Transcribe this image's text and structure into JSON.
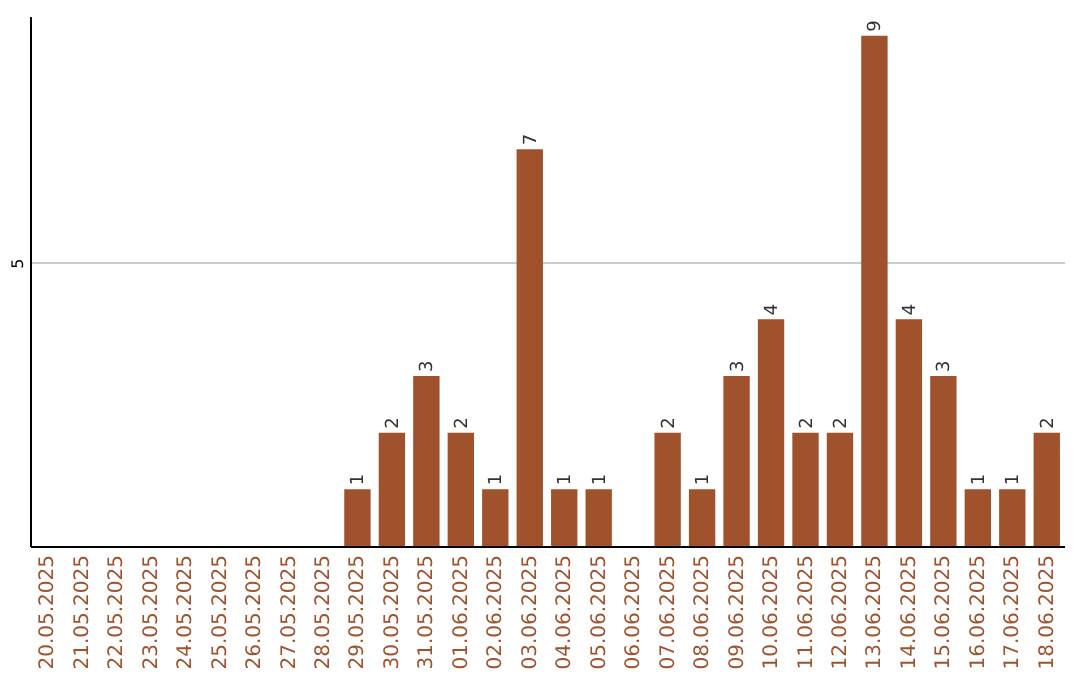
{
  "chart_data": {
    "type": "bar",
    "categories": [
      "20.05.2025",
      "21.05.2025",
      "22.05.2025",
      "23.05.2025",
      "24.05.2025",
      "25.05.2025",
      "26.05.2025",
      "27.05.2025",
      "28.05.2025",
      "29.05.2025",
      "30.05.2025",
      "31.05.2025",
      "01.06.2025",
      "02.06.2025",
      "03.06.2025",
      "04.06.2025",
      "05.06.2025",
      "06.06.2025",
      "07.06.2025",
      "08.06.2025",
      "09.06.2025",
      "10.06.2025",
      "11.06.2025",
      "12.06.2025",
      "13.06.2025",
      "14.06.2025",
      "15.06.2025",
      "16.06.2025",
      "17.06.2025",
      "18.06.2025"
    ],
    "values": [
      0,
      0,
      0,
      0,
      0,
      0,
      0,
      0,
      0,
      1,
      2,
      3,
      2,
      1,
      7,
      1,
      1,
      0,
      2,
      1,
      3,
      4,
      2,
      2,
      9,
      4,
      3,
      1,
      1,
      2
    ],
    "value_labels": [
      null,
      null,
      null,
      null,
      null,
      null,
      null,
      null,
      null,
      "1",
      "2",
      "3",
      "2",
      "1",
      "7",
      "1",
      "1",
      null,
      "2",
      "1",
      "3",
      "4",
      "2",
      "2",
      "9",
      "4",
      "3",
      "1",
      "1",
      "2"
    ],
    "color": "#a0522d",
    "ylim": [
      0,
      9.35
    ],
    "yticks": [
      5
    ],
    "grid": "y"
  }
}
